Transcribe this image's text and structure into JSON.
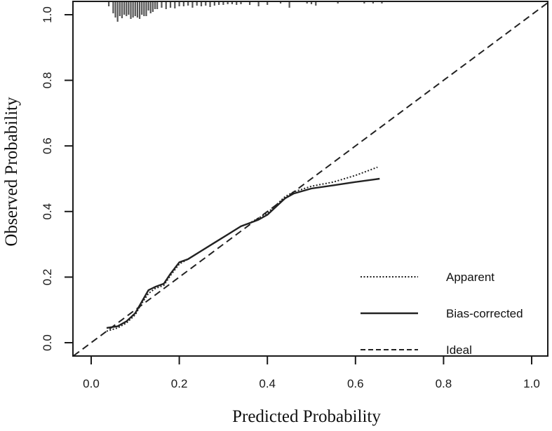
{
  "chart_data": {
    "type": "line",
    "title": "",
    "xlabel": "Predicted Probability",
    "ylabel": "Observed Probability",
    "xlim": [
      -0.04,
      1.04
    ],
    "ylim": [
      -0.04,
      1.04
    ],
    "x_ticks": [
      0.0,
      0.2,
      0.4,
      0.6,
      0.8,
      1.0
    ],
    "x_tick_labels": [
      "0.0",
      "0.2",
      "0.4",
      "0.6",
      "0.8",
      "1.0"
    ],
    "y_ticks": [
      0.0,
      0.2,
      0.4,
      0.6,
      0.8,
      1.0
    ],
    "y_tick_labels": [
      "0.0",
      "0.2",
      "0.4",
      "0.6",
      "0.8",
      "1.0"
    ],
    "grid": false,
    "legend_position": "bottom-right",
    "series": [
      {
        "name": "Apparent",
        "style": "dotted",
        "x": [
          0.035,
          0.06,
          0.08,
          0.1,
          0.115,
          0.13,
          0.145,
          0.165,
          0.18,
          0.2,
          0.22,
          0.25,
          0.28,
          0.31,
          0.34,
          0.36,
          0.38,
          0.4,
          0.42,
          0.44,
          0.46,
          0.5,
          0.55,
          0.6,
          0.65
        ],
        "y": [
          0.035,
          0.045,
          0.06,
          0.085,
          0.12,
          0.15,
          0.165,
          0.175,
          0.205,
          0.24,
          0.255,
          0.28,
          0.305,
          0.33,
          0.355,
          0.365,
          0.38,
          0.395,
          0.42,
          0.445,
          0.46,
          0.477,
          0.49,
          0.51,
          0.535
        ]
      },
      {
        "name": "Bias-corrected",
        "style": "solid",
        "x": [
          0.035,
          0.06,
          0.08,
          0.1,
          0.115,
          0.13,
          0.145,
          0.165,
          0.18,
          0.2,
          0.22,
          0.25,
          0.28,
          0.31,
          0.34,
          0.36,
          0.38,
          0.4,
          0.42,
          0.44,
          0.46,
          0.5,
          0.55,
          0.6,
          0.655
        ],
        "y": [
          0.045,
          0.05,
          0.065,
          0.09,
          0.125,
          0.16,
          0.17,
          0.18,
          0.21,
          0.245,
          0.255,
          0.28,
          0.305,
          0.33,
          0.355,
          0.365,
          0.375,
          0.39,
          0.415,
          0.44,
          0.455,
          0.47,
          0.48,
          0.49,
          0.5
        ]
      },
      {
        "name": "Ideal",
        "style": "dashed",
        "x": [
          -0.04,
          1.04
        ],
        "y": [
          -0.04,
          1.04
        ]
      }
    ],
    "rug": {
      "position": "top",
      "description": "Distribution of predicted probabilities (spike marks hanging from top border at y=1.04)",
      "x": [
        0.04,
        0.05,
        0.055,
        0.06,
        0.065,
        0.07,
        0.075,
        0.08,
        0.085,
        0.09,
        0.095,
        0.1,
        0.105,
        0.11,
        0.115,
        0.12,
        0.125,
        0.13,
        0.135,
        0.14,
        0.145,
        0.15,
        0.16,
        0.17,
        0.18,
        0.19,
        0.2,
        0.21,
        0.22,
        0.23,
        0.24,
        0.25,
        0.26,
        0.27,
        0.28,
        0.29,
        0.3,
        0.31,
        0.32,
        0.33,
        0.34,
        0.36,
        0.38,
        0.4,
        0.43,
        0.45,
        0.49,
        0.5,
        0.51,
        0.56,
        0.62,
        0.64,
        0.66
      ],
      "len": [
        6,
        16,
        22,
        28,
        20,
        23,
        18,
        20,
        18,
        24,
        22,
        20,
        22,
        24,
        18,
        20,
        20,
        12,
        16,
        14,
        10,
        10,
        8,
        10,
        8,
        9,
        6,
        6,
        5,
        8,
        5,
        6,
        5,
        7,
        5,
        4,
        4,
        3,
        3,
        4,
        3,
        4,
        6,
        4,
        2,
        8,
        2,
        3,
        5,
        2,
        2,
        2,
        2
      ]
    }
  },
  "legend": {
    "items": [
      {
        "label": "Apparent",
        "style": "dotted"
      },
      {
        "label": "Bias-corrected",
        "style": "solid"
      },
      {
        "label": "Ideal",
        "style": "dashed"
      }
    ]
  },
  "colors": {
    "line": "#222222",
    "axis": "#1a1a1a",
    "background": "#ffffff",
    "rug": "#555555"
  }
}
